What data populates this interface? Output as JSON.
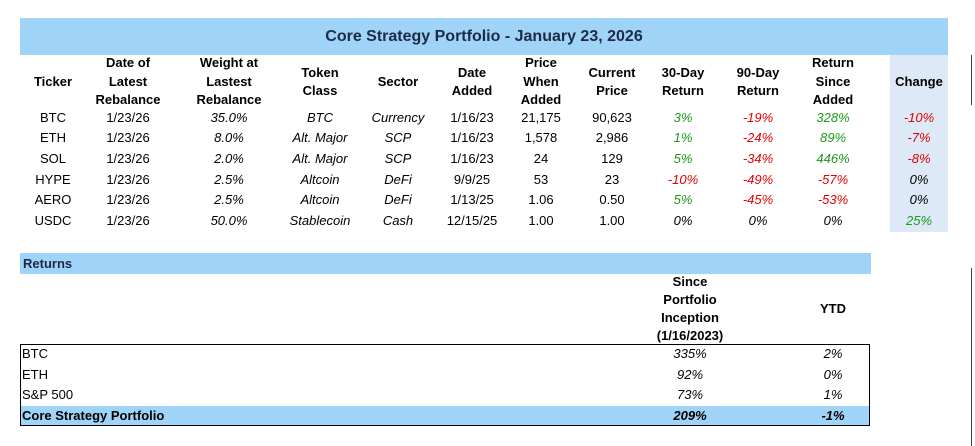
{
  "title": "Core Strategy Portfolio - January 23, 2026",
  "holdings": {
    "columns": [
      "Ticker",
      "Date of\nLatest\nRebalance",
      "Weight at\nLastest\nRebalance",
      "Token\nClass",
      "Sector",
      "Date\nAdded",
      "Price\nWhen\nAdded",
      "Current\nPrice",
      "30-Day\nReturn",
      "90-Day\nReturn",
      "Return\nSince\nAdded",
      "Change"
    ],
    "rows": [
      [
        "BTC",
        "1/23/26",
        "35.0%",
        "BTC",
        "Currency",
        "1/16/23",
        "21,175",
        "90,623",
        "3%",
        "-19%",
        "328%",
        "-10%"
      ],
      [
        "ETH",
        "1/23/26",
        "8.0%",
        "Alt. Major",
        "SCP",
        "1/16/23",
        "1,578",
        "2,986",
        "1%",
        "-24%",
        "89%",
        "-7%"
      ],
      [
        "SOL",
        "1/23/26",
        "2.0%",
        "Alt. Major",
        "SCP",
        "1/16/23",
        "24",
        "129",
        "5%",
        "-34%",
        "446%",
        "-8%"
      ],
      [
        "HYPE",
        "1/23/26",
        "2.5%",
        "Altcoin",
        "DeFi",
        "9/9/25",
        "53",
        "23",
        "-10%",
        "-49%",
        "-57%",
        "0%"
      ],
      [
        "AERO",
        "1/23/26",
        "2.5%",
        "Altcoin",
        "DeFi",
        "1/13/25",
        "1.06",
        "0.50",
        "5%",
        "-45%",
        "-53%",
        "0%"
      ],
      [
        "USDC",
        "1/23/26",
        "50.0%",
        "Stablecoin",
        "Cash",
        "12/15/25",
        "1.00",
        "1.00",
        "0%",
        "0%",
        "0%",
        "25%"
      ]
    ]
  },
  "returns": {
    "title": "Returns",
    "columns": [
      "Since\nPortfolio\nInception\n(1/16/2023)",
      "YTD"
    ],
    "rows": [
      [
        "BTC",
        "335%",
        "2%"
      ],
      [
        "ETH",
        "92%",
        "0%"
      ],
      [
        "S&P 500",
        "73%",
        "1%"
      ],
      [
        "Core Strategy Portfolio",
        "209%",
        "-1%"
      ]
    ]
  }
}
